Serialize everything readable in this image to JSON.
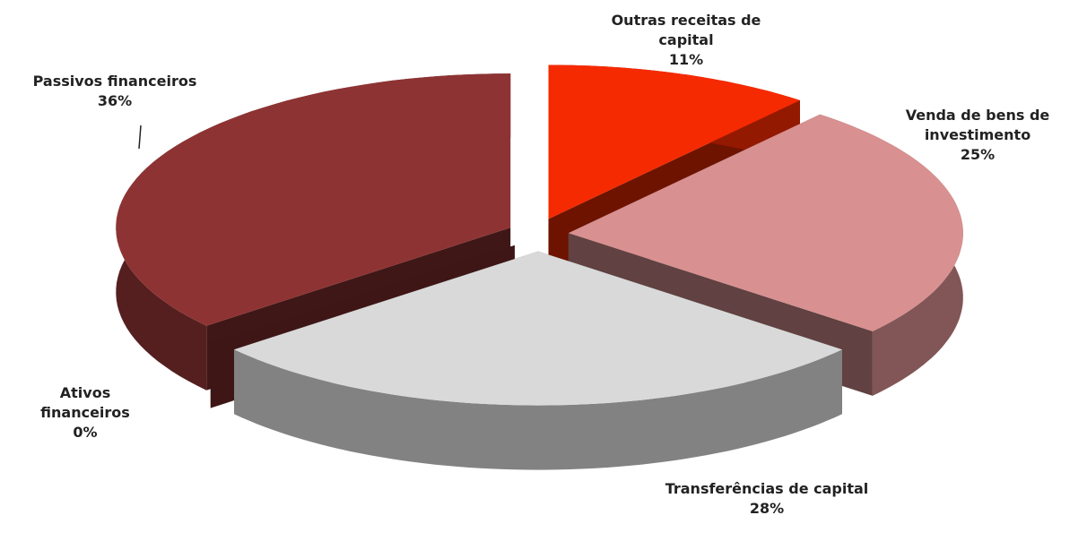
{
  "chart_data": {
    "type": "pie",
    "categories": [
      "Outras receitas de capital",
      "Venda de bens de investimento",
      "Transferências de capital",
      "Ativos financeiros",
      "Passivos financeiros"
    ],
    "values": [
      11,
      25,
      28,
      0,
      36
    ],
    "value_labels": [
      "11%",
      "25%",
      "28%",
      "0%",
      "36%"
    ],
    "colors": [
      "#f52a00",
      "#d89090",
      "#d9d9d9",
      "#8b3030",
      "#8e3333"
    ],
    "explode": true,
    "three_d": true
  }
}
